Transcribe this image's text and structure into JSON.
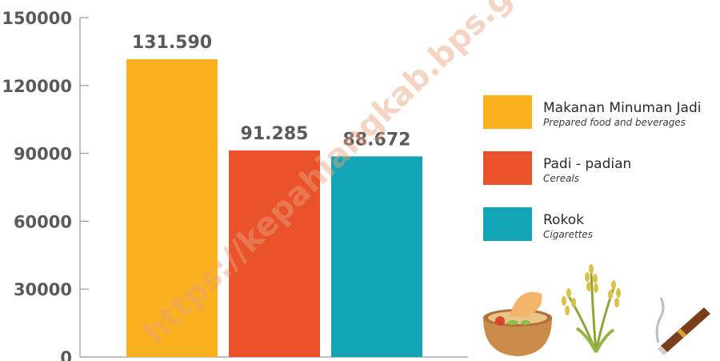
{
  "chart_data": {
    "type": "bar",
    "categories": [
      "Makanan Minuman Jadi",
      "Padi - padian",
      "Rokok"
    ],
    "values": [
      131590,
      91285,
      88672
    ],
    "value_labels": [
      "131.590",
      "91.285",
      "88.672"
    ],
    "colors": [
      "#FBB11D",
      "#E9522A",
      "#13A5B7"
    ],
    "ylim": [
      0,
      150000
    ],
    "yticks": [
      0,
      30000,
      60000,
      90000,
      120000,
      150000
    ],
    "grid": false,
    "legend_position": "right",
    "legend": [
      {
        "label": "Makanan Minuman Jadi",
        "sublabel": "Prepared food and beverages",
        "color": "#FBB11D",
        "icon": "food-bowl-icon"
      },
      {
        "label": "Padi - padian",
        "sublabel": "Cereals",
        "color": "#E9522A",
        "icon": "rice-plant-icon"
      },
      {
        "label": "Rokok",
        "sublabel": "Cigarettes",
        "color": "#13A5B7",
        "icon": "cigar-icon"
      }
    ]
  },
  "watermark": "https://kepahiangkab.bps.go.id"
}
